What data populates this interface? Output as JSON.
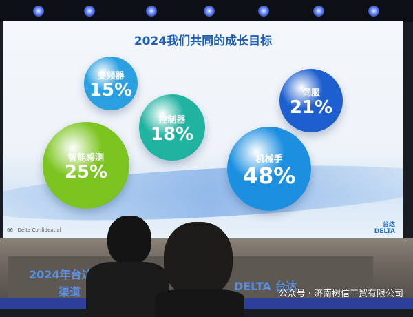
{
  "slide": {
    "title": "2024我们共同的成长目标",
    "bubbles": [
      {
        "label": "变频器",
        "value": "15%",
        "color": "#2aa0e0"
      },
      {
        "label": "控制器",
        "value": "18%",
        "color": "#1fb3a0"
      },
      {
        "label": "智能感测",
        "value": "25%",
        "color": "#7cc520"
      },
      {
        "label": "伺服",
        "value": "21%",
        "color": "#1e5fd0"
      },
      {
        "label": "机械手",
        "value": "48%",
        "color": "#1c8fe0"
      }
    ],
    "page_number": "66",
    "footer": "Delta Confidential",
    "logo_cn": "台达",
    "logo_en": "DELTA"
  },
  "banner": {
    "line1": "2024年台达",
    "line2": "渠道",
    "brand": "DELTA 台达"
  },
  "watermark": "公众号 · 济南树信工贸有限公司"
}
